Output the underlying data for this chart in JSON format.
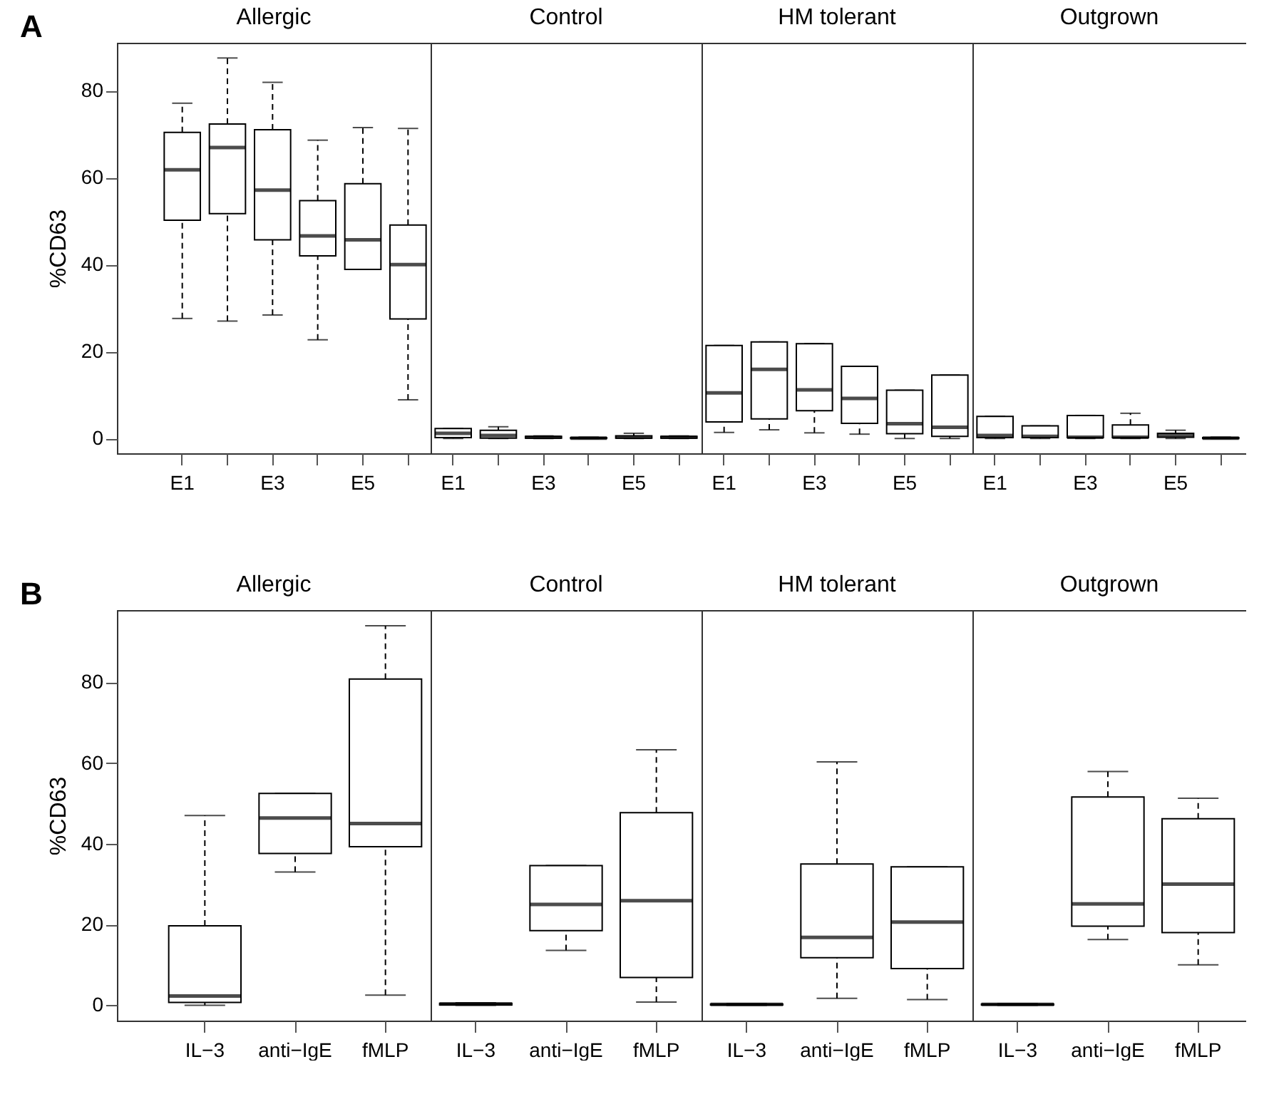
{
  "chart_data": [
    {
      "type": "box",
      "title": "Allergic",
      "annotations": [
        "A"
      ],
      "ylabel": "%CD63",
      "ylim": [
        -3.4,
        91
      ],
      "yticks": [
        0,
        20,
        40,
        60,
        80
      ],
      "categories": [
        "E1",
        null,
        "E3",
        null,
        "E5",
        null
      ],
      "boxes": [
        {
          "low": 27.6,
          "q1": 50.2,
          "median": 61.8,
          "q3": 70.4,
          "high": 77.1
        },
        {
          "low": 27.0,
          "q1": 51.7,
          "median": 66.9,
          "q3": 72.3,
          "high": 87.5
        },
        {
          "low": 28.4,
          "q1": 45.7,
          "median": 57.1,
          "q3": 71.0,
          "high": 81.9
        },
        {
          "low": 22.7,
          "q1": 42.0,
          "median": 46.6,
          "q3": 54.7,
          "high": 68.6
        },
        {
          "low": 38.9,
          "q1": 38.9,
          "median": 45.7,
          "q3": 58.6,
          "high": 71.5
        },
        {
          "low": 8.9,
          "q1": 27.5,
          "median": 40.0,
          "q3": 49.1,
          "high": 71.3
        }
      ]
    },
    {
      "type": "box",
      "title": "Control",
      "tick_labels": "x",
      "ylim": [
        -3.4,
        91
      ],
      "categories": [
        "E1",
        null,
        "E3",
        null,
        "E5",
        null
      ],
      "boxes": [
        {
          "low": 0,
          "q1": 0.2,
          "median": 1.2,
          "q3": 2.3,
          "high": 2.3
        },
        {
          "low": 0,
          "q1": 0.1,
          "median": 0.7,
          "q3": 1.9,
          "high": 2.7
        },
        {
          "low": 0,
          "q1": 0.1,
          "median": 0.3,
          "q3": 0.5,
          "high": 0.6
        },
        {
          "low": 0,
          "q1": 0,
          "median": 0.1,
          "q3": 0.2,
          "high": 0.3
        },
        {
          "low": 0,
          "q1": 0.1,
          "median": 0.3,
          "q3": 0.6,
          "high": 1.2
        },
        {
          "low": 0,
          "q1": 0.1,
          "median": 0.3,
          "q3": 0.5,
          "high": 0.6
        }
      ]
    },
    {
      "type": "box",
      "title": "HM tolerant",
      "tick_labels": "x",
      "ylim": [
        -3.4,
        91
      ],
      "categories": [
        "E1",
        null,
        "E3",
        null,
        "E5",
        null
      ],
      "boxes": [
        {
          "low": 1.4,
          "q1": 3.8,
          "median": 10.5,
          "q3": 21.4,
          "high": 21.4
        },
        {
          "low": 2.0,
          "q1": 4.5,
          "median": 15.9,
          "q3": 22.2,
          "high": 22.2
        },
        {
          "low": 1.3,
          "q1": 6.4,
          "median": 11.2,
          "q3": 21.8,
          "high": 21.8
        },
        {
          "low": 1.0,
          "q1": 3.5,
          "median": 9.2,
          "q3": 16.6,
          "high": 16.6
        },
        {
          "low": 0,
          "q1": 1.1,
          "median": 3.4,
          "q3": 11.1,
          "high": 11.1
        },
        {
          "low": 0,
          "q1": 0.5,
          "median": 2.6,
          "q3": 14.6,
          "high": 14.6
        }
      ]
    },
    {
      "type": "box",
      "title": "Outgrown",
      "tick_labels": "x",
      "ylim": [
        -3.4,
        91
      ],
      "categories": [
        "E1",
        null,
        "E3",
        null,
        "E5",
        null
      ],
      "boxes": [
        {
          "low": 0,
          "q1": 0.2,
          "median": 0.7,
          "q3": 5.1,
          "high": 5.1
        },
        {
          "low": 0,
          "q1": 0.2,
          "median": 0.5,
          "q3": 2.9,
          "high": 2.9
        },
        {
          "low": 0,
          "q1": 0.2,
          "median": 0.3,
          "q3": 5.3,
          "high": 5.3
        },
        {
          "low": 0,
          "q1": 0.2,
          "median": 0.3,
          "q3": 3.1,
          "high": 5.8
        },
        {
          "low": 0,
          "q1": 0.3,
          "median": 0.6,
          "q3": 1.2,
          "high": 1.9
        },
        {
          "low": 0,
          "q1": 0,
          "median": 0.1,
          "q3": 0.2,
          "high": 0.3
        }
      ]
    },
    {
      "type": "box",
      "title": "Allergic",
      "annotations": [
        "B"
      ],
      "ylabel": "%CD63",
      "ylim": [
        -3.8,
        97.9
      ],
      "yticks": [
        0,
        20,
        40,
        60,
        80
      ],
      "categories": [
        "IL−3",
        "anti−IgE",
        "fMLP"
      ],
      "boxes": [
        {
          "low": 0,
          "q1": 0.7,
          "median": 2.3,
          "q3": 19.7,
          "high": 47.0
        },
        {
          "low": 33.0,
          "q1": 37.6,
          "median": 46.4,
          "q3": 52.5,
          "high": 52.5
        },
        {
          "low": 2.5,
          "q1": 39.3,
          "median": 45.0,
          "q3": 80.8,
          "high": 94.0
        }
      ]
    },
    {
      "type": "box",
      "title": "Control",
      "tick_labels": "x",
      "ylim": [
        -3.8,
        97.9
      ],
      "categories": [
        "IL−3",
        "anti−IgE",
        "fMLP"
      ],
      "boxes": [
        {
          "low": 0,
          "q1": 0.1,
          "median": 0.3,
          "q3": 0.5,
          "high": 0.6
        },
        {
          "low": 13.6,
          "q1": 18.5,
          "median": 25.0,
          "q3": 34.6,
          "high": 34.6
        },
        {
          "low": 0.8,
          "q1": 6.9,
          "median": 25.9,
          "q3": 47.7,
          "high": 63.3
        }
      ]
    },
    {
      "type": "box",
      "title": "HM tolerant",
      "tick_labels": "x",
      "ylim": [
        -3.8,
        97.9
      ],
      "categories": [
        "IL−3",
        "anti−IgE",
        "fMLP"
      ],
      "boxes": [
        {
          "low": 0,
          "q1": 0.1,
          "median": 0.2,
          "q3": 0.3,
          "high": 0.4
        },
        {
          "low": 1.7,
          "q1": 11.8,
          "median": 16.8,
          "q3": 35.0,
          "high": 60.3
        },
        {
          "low": 1.4,
          "q1": 9.1,
          "median": 20.6,
          "q3": 34.3,
          "high": 34.3
        }
      ]
    },
    {
      "type": "box",
      "title": "Outgrown",
      "tick_labels": "x",
      "ylim": [
        -3.8,
        97.9
      ],
      "categories": [
        "IL−3",
        "anti−IgE",
        "fMLP"
      ],
      "boxes": [
        {
          "low": 0,
          "q1": 0.1,
          "median": 0.2,
          "q3": 0.3,
          "high": 0.4
        },
        {
          "low": 16.3,
          "q1": 19.6,
          "median": 25.1,
          "q3": 51.6,
          "high": 57.9
        },
        {
          "low": 10.0,
          "q1": 18.0,
          "median": 30.0,
          "q3": 46.2,
          "high": 51.3
        }
      ]
    }
  ]
}
